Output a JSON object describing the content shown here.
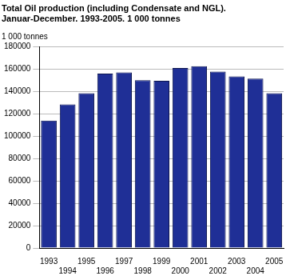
{
  "chart_data": {
    "type": "bar",
    "title": [
      "Total Oil production (including Condensate and NGL).",
      "Januar-December. 1993-2005. 1 000 tonnes"
    ],
    "y_label": "1 000 tonnes",
    "categories": [
      "1993",
      "1994",
      "1995",
      "1996",
      "1997",
      "1998",
      "1999",
      "2000",
      "2001",
      "2002",
      "2003",
      "2004",
      "2005"
    ],
    "values": [
      114000,
      128500,
      138500,
      156000,
      157000,
      150000,
      149500,
      161000,
      162500,
      157800,
      153500,
      151500,
      138500
    ],
    "color": "#1f2f96",
    "ylim": [
      0,
      180000
    ],
    "yticks": [
      0,
      20000,
      40000,
      60000,
      80000,
      100000,
      120000,
      140000,
      160000,
      180000
    ],
    "grid": true
  }
}
